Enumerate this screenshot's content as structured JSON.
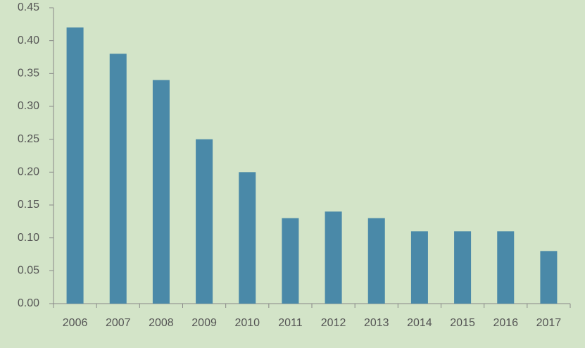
{
  "chart_data": {
    "type": "bar",
    "categories": [
      "2006",
      "2007",
      "2008",
      "2009",
      "2010",
      "2011",
      "2012",
      "2013",
      "2014",
      "2015",
      "2016",
      "2017"
    ],
    "values": [
      0.42,
      0.38,
      0.34,
      0.25,
      0.2,
      0.13,
      0.14,
      0.13,
      0.11,
      0.11,
      0.11,
      0.08
    ],
    "color": "#4a89a8",
    "ylim": [
      0,
      0.45
    ],
    "yticks": [
      {
        "value": 0,
        "label": "0.00"
      },
      0.05,
      {
        "value": 0.1,
        "label": "0.10"
      },
      0.15,
      {
        "value": 0.2,
        "label": "0.20"
      },
      0.25,
      {
        "value": 0.3,
        "label": "0.30"
      },
      0.35,
      {
        "value": 0.4,
        "label": "0.40"
      },
      0.45
    ],
    "grid": false
  }
}
